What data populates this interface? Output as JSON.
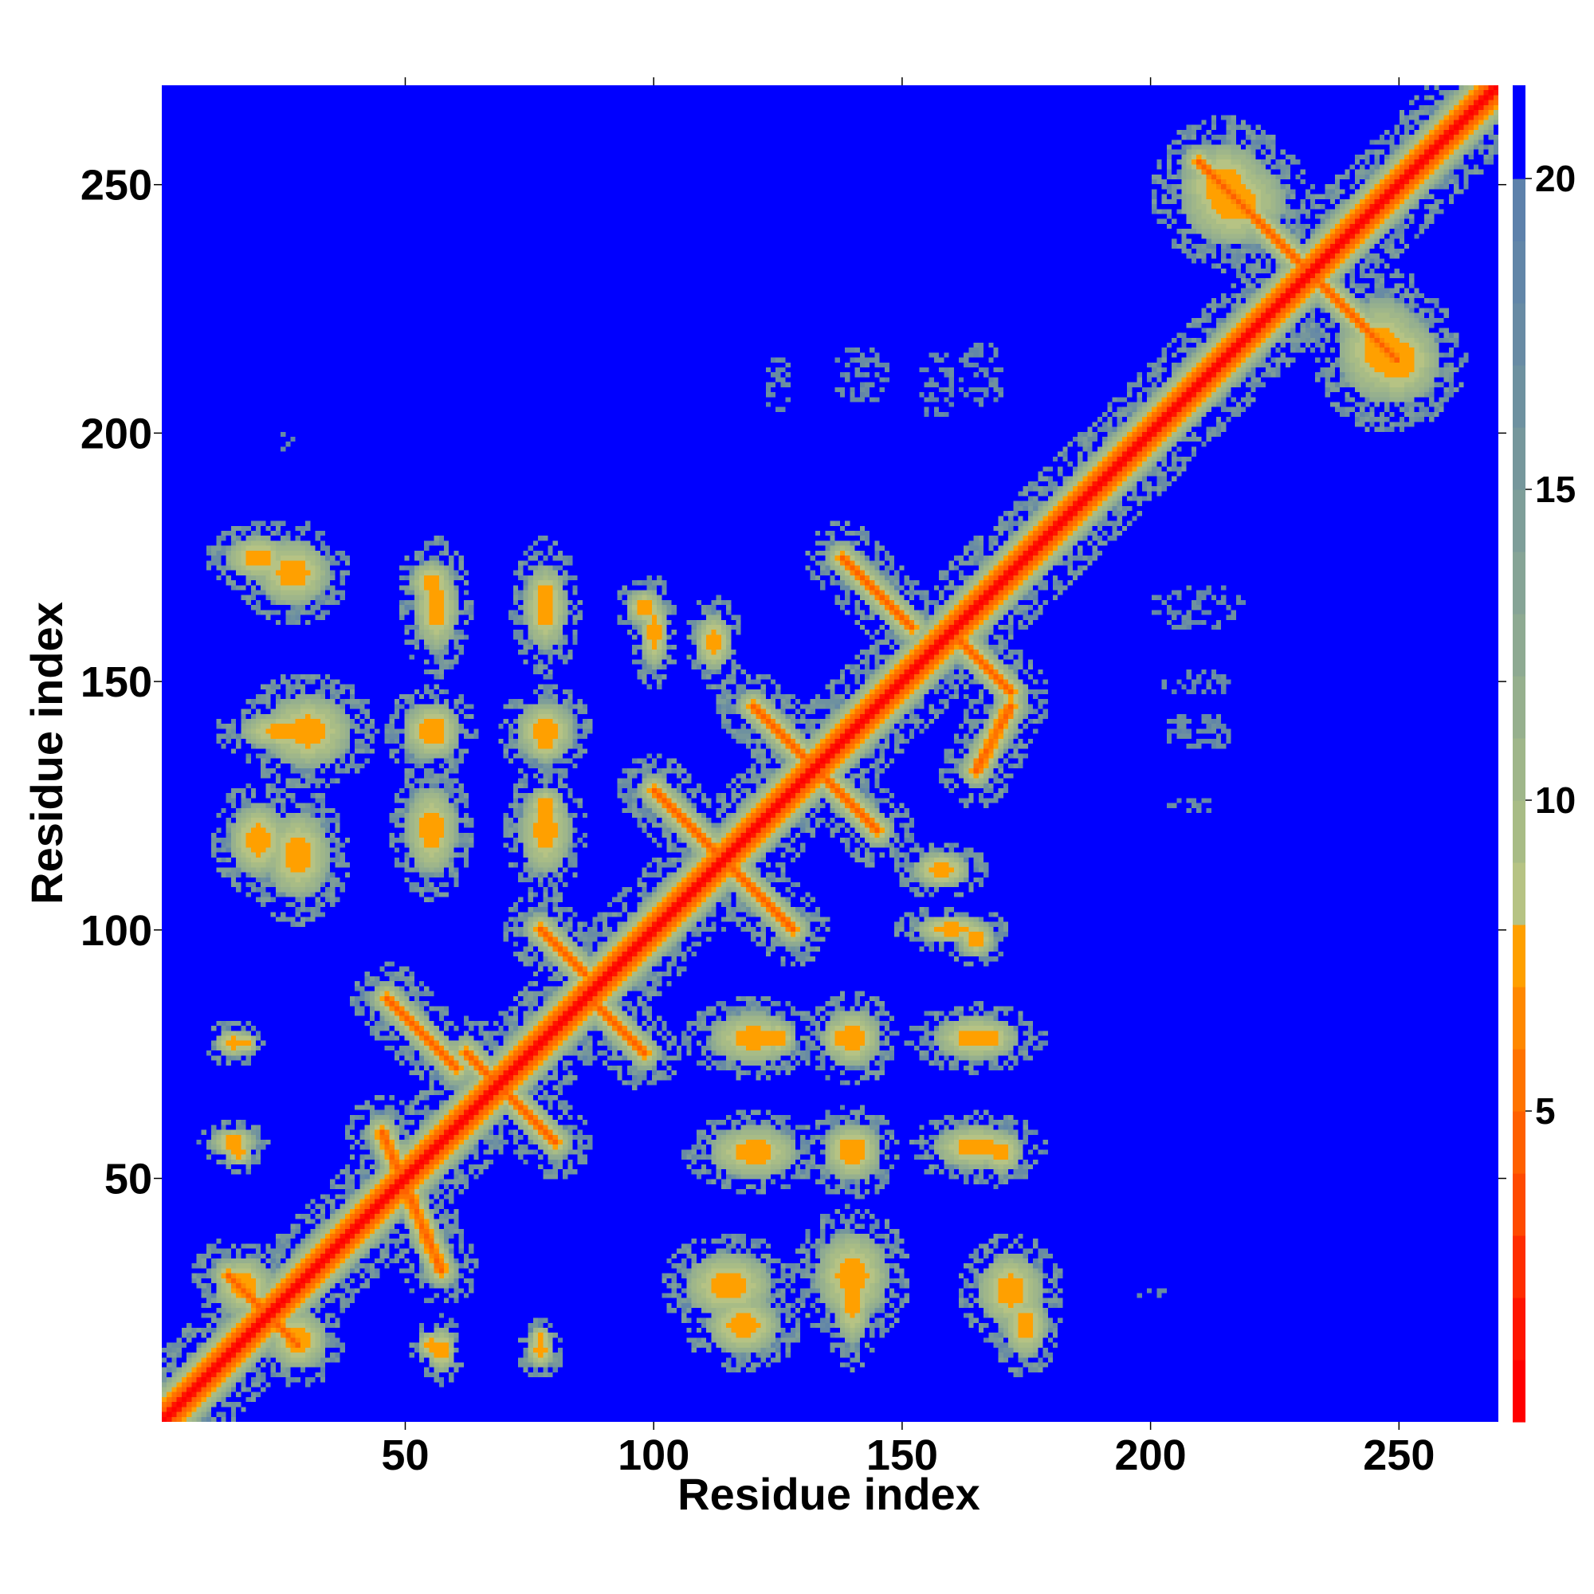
{
  "chart_data": {
    "type": "heatmap",
    "title": "",
    "xlabel": "Residue index",
    "ylabel": "Residue index",
    "n_residues": 270,
    "xlim": [
      1,
      270
    ],
    "ylim": [
      1,
      270
    ],
    "xticks": [
      50,
      100,
      150,
      200,
      250
    ],
    "yticks": [
      50,
      100,
      150,
      200,
      250
    ],
    "colorbar": {
      "ticks": [
        5,
        10,
        15,
        20
      ],
      "range": [
        0,
        21.5
      ],
      "levels": [
        {
          "min": 0,
          "max": 1,
          "color": "#ff0000"
        },
        {
          "min": 1,
          "max": 2,
          "color": "#ff1500"
        },
        {
          "min": 2,
          "max": 3,
          "color": "#ff2d00"
        },
        {
          "min": 3,
          "max": 4,
          "color": "#ff4a00"
        },
        {
          "min": 4,
          "max": 5,
          "color": "#ff6000"
        },
        {
          "min": 5,
          "max": 6,
          "color": "#ff7300"
        },
        {
          "min": 6,
          "max": 7,
          "color": "#ff8800"
        },
        {
          "min": 7,
          "max": 8,
          "color": "#ffa000"
        },
        {
          "min": 8,
          "max": 9,
          "color": "#b6c384"
        },
        {
          "min": 9,
          "max": 10,
          "color": "#a8bc86"
        },
        {
          "min": 10,
          "max": 11,
          "color": "#9fb68a"
        },
        {
          "min": 11,
          "max": 12,
          "color": "#96b08e"
        },
        {
          "min": 12,
          "max": 13,
          "color": "#8eaa92"
        },
        {
          "min": 13,
          "max": 14,
          "color": "#86a496"
        },
        {
          "min": 14,
          "max": 15,
          "color": "#7e9e99"
        },
        {
          "min": 15,
          "max": 16,
          "color": "#76979c"
        },
        {
          "min": 16,
          "max": 17,
          "color": "#6e91a0"
        },
        {
          "min": 17,
          "max": 18,
          "color": "#688ba4"
        },
        {
          "min": 18,
          "max": 19,
          "color": "#6286a8"
        },
        {
          "min": 19,
          "max": 20,
          "color": "#5d81ab"
        },
        {
          "min": 20,
          "max": 21.5,
          "color": "#0000ff"
        }
      ]
    },
    "colors": {
      "background": "#0000ff",
      "diagonal": "#ff0000",
      "contact": "#ff8800",
      "near": "#ffa000",
      "mid": "#a8bc86",
      "far": "#6e91a0"
    },
    "features": {
      "diagonal_band": {
        "start": 1,
        "end": 270,
        "width": 9
      },
      "helices": [
        {
          "start": 1,
          "end": 10
        },
        {
          "start": 16,
          "end": 36
        },
        {
          "start": 190,
          "end": 205
        }
      ],
      "strands": [
        {
          "start": 40,
          "end": 48
        },
        {
          "start": 52,
          "end": 60
        },
        {
          "start": 62,
          "end": 72
        },
        {
          "start": 75,
          "end": 85
        },
        {
          "start": 88,
          "end": 98
        },
        {
          "start": 110,
          "end": 120
        },
        {
          "start": 125,
          "end": 135
        },
        {
          "start": 140,
          "end": 150
        },
        {
          "start": 155,
          "end": 165
        },
        {
          "start": 168,
          "end": 178
        },
        {
          "start": 212,
          "end": 222
        },
        {
          "start": 230,
          "end": 240
        }
      ],
      "antiparallel_pairs": [
        {
          "a_start": 45,
          "a_end": 57,
          "b_start": 59,
          "b_end": 31
        },
        {
          "a_start": 46,
          "a_end": 60,
          "b_start": 86,
          "b_end": 72
        },
        {
          "a_start": 77,
          "a_end": 86,
          "b_start": 100,
          "b_end": 91
        },
        {
          "a_start": 85,
          "a_end": 98,
          "b_start": 88,
          "b_end": 75
        },
        {
          "a_start": 62,
          "a_end": 80,
          "b_start": 75,
          "b_end": 57
        },
        {
          "a_start": 100,
          "a_end": 128,
          "b_start": 128,
          "b_end": 100
        },
        {
          "a_start": 120,
          "a_end": 145,
          "b_start": 145,
          "b_end": 120
        },
        {
          "a_start": 138,
          "a_end": 152,
          "b_start": 175,
          "b_end": 161
        },
        {
          "a_start": 160,
          "a_end": 172,
          "b_start": 160,
          "b_end": 148
        },
        {
          "a_start": 165,
          "a_end": 172,
          "b_start": 132,
          "b_end": 145
        },
        {
          "a_start": 210,
          "a_end": 235,
          "b_start": 255,
          "b_end": 230
        },
        {
          "a_start": 225,
          "a_end": 250,
          "b_start": 240,
          "b_end": 215
        },
        {
          "a_start": 14,
          "a_end": 28,
          "b_start": 30,
          "b_end": 16
        }
      ],
      "contact_clusters": [
        {
          "x": 20,
          "y": 175,
          "rx": 9,
          "ry": 6
        },
        {
          "x": 55,
          "y": 170,
          "rx": 6,
          "ry": 6
        },
        {
          "x": 78,
          "y": 168,
          "rx": 5,
          "ry": 6
        },
        {
          "x": 98,
          "y": 165,
          "rx": 5,
          "ry": 5
        },
        {
          "x": 25,
          "y": 140,
          "rx": 12,
          "ry": 5
        },
        {
          "x": 55,
          "y": 140,
          "rx": 8,
          "ry": 8
        },
        {
          "x": 78,
          "y": 138,
          "rx": 6,
          "ry": 6
        },
        {
          "x": 20,
          "y": 118,
          "rx": 8,
          "ry": 10
        },
        {
          "x": 55,
          "y": 122,
          "rx": 7,
          "ry": 6
        },
        {
          "x": 78,
          "y": 125,
          "rx": 5,
          "ry": 5
        },
        {
          "x": 15,
          "y": 77,
          "rx": 5,
          "ry": 4
        },
        {
          "x": 15,
          "y": 57,
          "rx": 6,
          "ry": 4
        },
        {
          "x": 17,
          "y": 28,
          "rx": 8,
          "ry": 8
        },
        {
          "x": 55,
          "y": 16,
          "rx": 4,
          "ry": 4
        },
        {
          "x": 77,
          "y": 17,
          "rx": 3,
          "ry": 4
        },
        {
          "x": 120,
          "y": 78,
          "rx": 12,
          "ry": 7
        },
        {
          "x": 140,
          "y": 78,
          "rx": 8,
          "ry": 8
        },
        {
          "x": 165,
          "y": 78,
          "rx": 12,
          "ry": 6
        },
        {
          "x": 120,
          "y": 55,
          "rx": 12,
          "ry": 7
        },
        {
          "x": 140,
          "y": 56,
          "rx": 8,
          "ry": 6
        },
        {
          "x": 165,
          "y": 56,
          "rx": 12,
          "ry": 6
        },
        {
          "x": 115,
          "y": 28,
          "rx": 12,
          "ry": 9
        },
        {
          "x": 140,
          "y": 30,
          "rx": 10,
          "ry": 12
        },
        {
          "x": 172,
          "y": 27,
          "rx": 9,
          "ry": 10
        },
        {
          "x": 160,
          "y": 100,
          "rx": 10,
          "ry": 4
        },
        {
          "x": 158,
          "y": 112,
          "rx": 8,
          "ry": 5
        },
        {
          "x": 217,
          "y": 247,
          "rx": 14,
          "ry": 12
        },
        {
          "x": 250,
          "y": 215,
          "rx": 12,
          "ry": 12
        }
      ],
      "sparse_clusters": [
        {
          "x": 125,
          "y": 210,
          "rx": 3,
          "ry": 6
        },
        {
          "x": 142,
          "y": 212,
          "rx": 6,
          "ry": 6
        },
        {
          "x": 157,
          "y": 210,
          "rx": 4,
          "ry": 7
        },
        {
          "x": 166,
          "y": 212,
          "rx": 5,
          "ry": 7
        },
        {
          "x": 210,
          "y": 165,
          "rx": 10,
          "ry": 5
        },
        {
          "x": 210,
          "y": 150,
          "rx": 8,
          "ry": 3
        },
        {
          "x": 210,
          "y": 140,
          "rx": 8,
          "ry": 4
        },
        {
          "x": 208,
          "y": 125,
          "rx": 5,
          "ry": 2
        },
        {
          "x": 26,
          "y": 198,
          "rx": 2,
          "ry": 3
        },
        {
          "x": 200,
          "y": 27,
          "rx": 4,
          "ry": 2
        }
      ]
    }
  }
}
